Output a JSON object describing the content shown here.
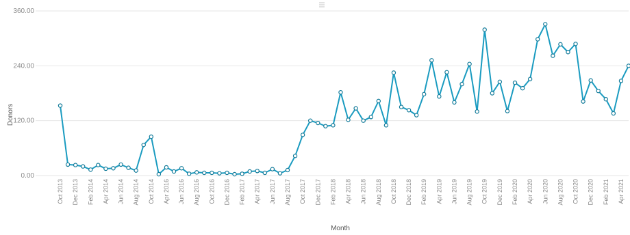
{
  "chart_data": {
    "type": "line",
    "xlabel": "Month",
    "ylabel": "Donors",
    "ylim": [
      0,
      360
    ],
    "yticks": [
      {
        "value": 0,
        "label": "0.00"
      },
      {
        "value": 120,
        "label": "120.00"
      },
      {
        "value": 240,
        "label": "240.00"
      },
      {
        "value": 360,
        "label": "360.00"
      }
    ],
    "grid": true,
    "x": [
      "Oct 2013",
      "Nov 2013",
      "Dec 2013",
      "Jan 2014",
      "Feb 2014",
      "Mar 2014",
      "Apr 2014",
      "May 2014",
      "Jun 2014",
      "Jul 2014",
      "Aug 2014",
      "Sep 2014",
      "Oct 2014",
      "Mar 2016",
      "Apr 2016",
      "May 2016",
      "Jun 2016",
      "Jul 2016",
      "Aug 2016",
      "Sep 2016",
      "Oct 2016",
      "Nov 2016",
      "Dec 2016",
      "Jan 2017",
      "Feb 2017",
      "Mar 2017",
      "Apr 2017",
      "May 2017",
      "Jun 2017",
      "Jul 2017",
      "Aug 2017",
      "Sep 2017",
      "Oct 2017",
      "Nov 2017",
      "Dec 2017",
      "Jan 2018",
      "Feb 2018",
      "Mar 2018",
      "Apr 2018",
      "May 2018",
      "Jun 2018",
      "Jul 2018",
      "Aug 2018",
      "Sep 2018",
      "Oct 2018",
      "Nov 2018",
      "Dec 2018",
      "Jan 2019",
      "Feb 2019",
      "Mar 2019",
      "Apr 2019",
      "May 2019",
      "Jun 2019",
      "Jul 2019",
      "Aug 2019",
      "Sep 2019",
      "Oct 2019",
      "Nov 2019",
      "Dec 2019",
      "Jan 2020",
      "Feb 2020",
      "Mar 2020",
      "Apr 2020",
      "May 2020",
      "Jun 2020",
      "Jul 2020",
      "Aug 2020",
      "Sep 2020",
      "Oct 2020",
      "Nov 2020",
      "Dec 2020",
      "Jan 2021",
      "Feb 2021",
      "Mar 2021",
      "Apr 2021",
      "May 2021"
    ],
    "x_tick_labels": [
      "Oct 2013",
      "Dec 2013",
      "Feb 2014",
      "Apr 2014",
      "Jun 2014",
      "Aug 2014",
      "Oct 2014",
      "Apr 2016",
      "Jun 2016",
      "Aug 2016",
      "Oct 2016",
      "Dec 2016",
      "Feb 2017",
      "Apr 2017",
      "Jun 2017",
      "Aug 2017",
      "Oct 2017",
      "Dec 2017",
      "Feb 2018",
      "Apr 2018",
      "Jun 2018",
      "Aug 2018",
      "Oct 2018",
      "Dec 2018",
      "Feb 2019",
      "Apr 2019",
      "Jun 2019",
      "Aug 2019",
      "Oct 2019",
      "Dec 2019",
      "Feb 2020",
      "Apr 2020",
      "Jun 2020",
      "Aug 2020",
      "Oct 2020",
      "Dec 2020",
      "Feb 2021",
      "Apr 2021"
    ],
    "series": [
      {
        "values": [
          153,
          24,
          23,
          20,
          13,
          23,
          15,
          16,
          24,
          17,
          11,
          67,
          85,
          3,
          18,
          9,
          16,
          4,
          7,
          6,
          6,
          5,
          6,
          3,
          4,
          9,
          10,
          6,
          14,
          5,
          12,
          43,
          89,
          120,
          115,
          108,
          110,
          182,
          122,
          147,
          120,
          128,
          163,
          110,
          225,
          150,
          143,
          132,
          178,
          252,
          173,
          226,
          160,
          200,
          244,
          140,
          319,
          180,
          205,
          141,
          203,
          191,
          211,
          298,
          331,
          262,
          287,
          270,
          288,
          162,
          208,
          185,
          167,
          136,
          207,
          240
        ]
      }
    ],
    "colors": {
      "line": "#1a9bc0",
      "marker_stroke": "#117a99"
    }
  }
}
